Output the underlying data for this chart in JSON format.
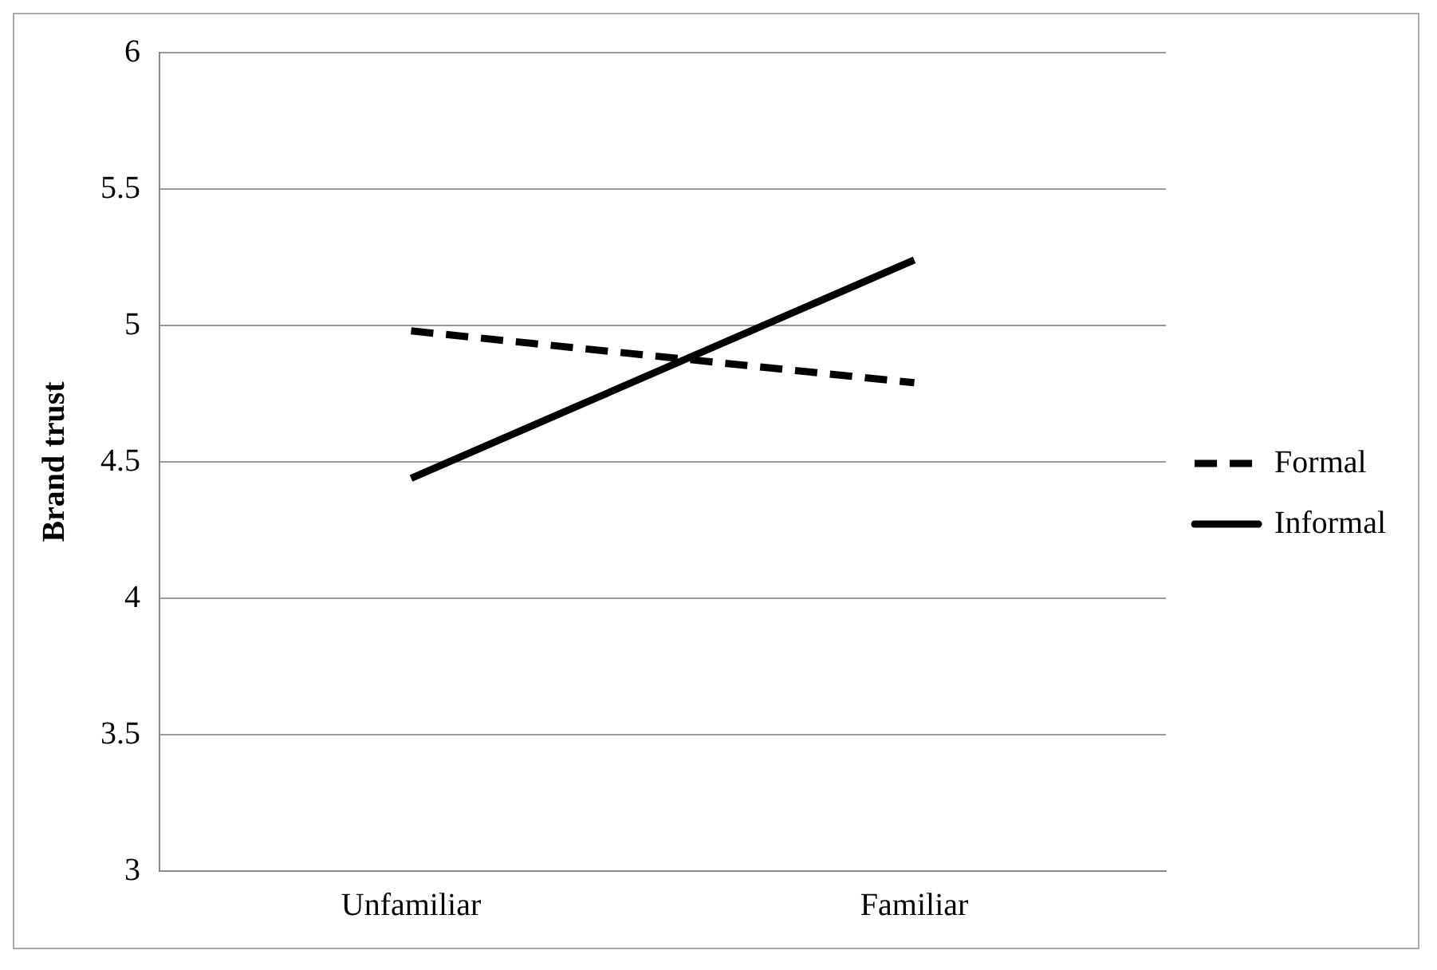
{
  "chart_data": {
    "type": "line",
    "ylabel": "Brand trust",
    "categories": [
      "Unfamiliar",
      "Familiar"
    ],
    "series": [
      {
        "name": "Formal",
        "color": "#000000",
        "values": [
          4.98,
          4.79
        ],
        "line_style": "dashed"
      },
      {
        "name": "Informal",
        "color": "#000000",
        "values": [
          4.44,
          5.24
        ],
        "line_style": "solid"
      }
    ],
    "ylim": [
      3,
      6
    ],
    "yticks": [
      3,
      3.5,
      4,
      4.5,
      5,
      5.5,
      6
    ],
    "grid": "y",
    "legend": "right",
    "marker": "none"
  }
}
